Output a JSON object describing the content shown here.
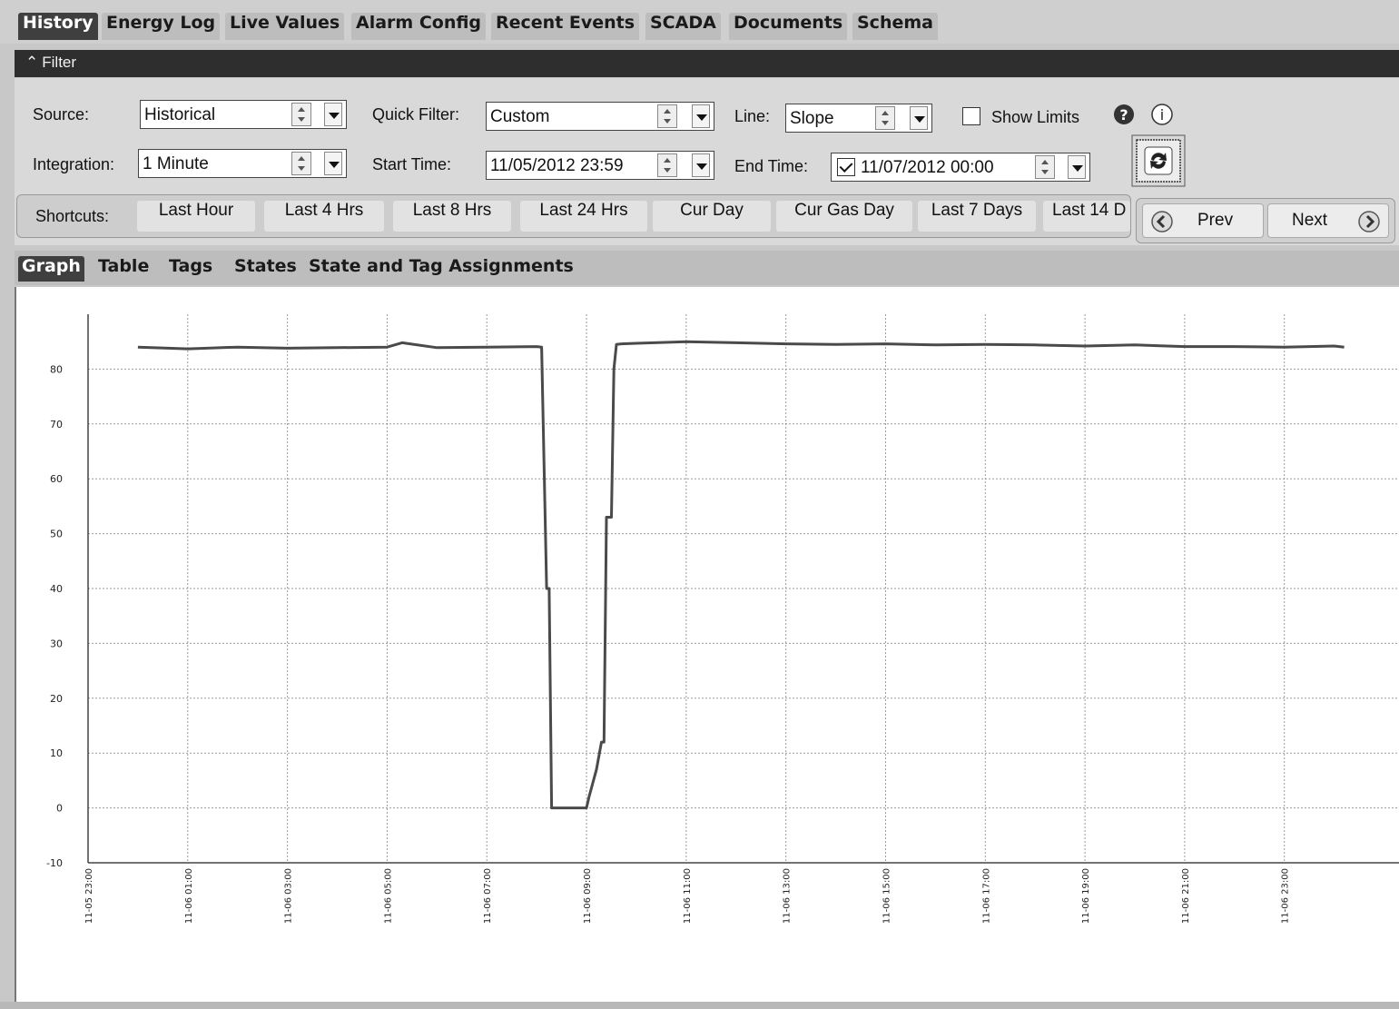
{
  "main_tabs": [
    {
      "label": "History",
      "active": true
    },
    {
      "label": "Energy Log"
    },
    {
      "label": "Live Values"
    },
    {
      "label": "Alarm Config"
    },
    {
      "label": "Recent Events"
    },
    {
      "label": "SCADA"
    },
    {
      "label": "Documents"
    },
    {
      "label": "Schema"
    }
  ],
  "filter": {
    "title": "Filter",
    "source_label": "Source:",
    "source_value": "Historical",
    "quick_filter_label": "Quick Filter:",
    "quick_filter_value": "Custom",
    "line_label": "Line:",
    "line_value": "Slope",
    "show_limits_label": "Show Limits",
    "show_limits_checked": false,
    "integration_label": "Integration:",
    "integration_value": "1 Minute",
    "start_time_label": "Start Time:",
    "start_time_value": "11/05/2012 23:59",
    "end_time_label": "End Time:",
    "end_time_checked": true,
    "end_time_value": "11/07/2012 00:00"
  },
  "shortcuts": {
    "label": "Shortcuts:",
    "items": [
      "Last Hour",
      "Last 4 Hrs",
      "Last 8 Hrs",
      "Last 24 Hrs",
      "Cur Day",
      "Cur Gas Day",
      "Last 7 Days",
      "Last 14 D"
    ]
  },
  "nav": {
    "prev_label": "Prev",
    "next_label": "Next"
  },
  "sub_tabs": [
    {
      "label": "Graph",
      "active": true
    },
    {
      "label": "Table"
    },
    {
      "label": "Tags"
    },
    {
      "label": "States"
    },
    {
      "label": "State and Tag Assignments"
    }
  ],
  "chart_data": {
    "type": "line",
    "title": "",
    "xlabel": "",
    "ylabel": "",
    "grid": true,
    "x_unit": "hours since 11-05 23:00",
    "xlim": [
      0,
      26.3
    ],
    "ylim": [
      -10,
      90
    ],
    "yticks": [
      -10,
      0,
      10,
      20,
      30,
      40,
      50,
      60,
      70,
      80
    ],
    "xticks": [
      {
        "value": 0,
        "label": "11-05 23:00"
      },
      {
        "value": 2,
        "label": "11-06 01:00"
      },
      {
        "value": 4,
        "label": "11-06 03:00"
      },
      {
        "value": 6,
        "label": "11-06 05:00"
      },
      {
        "value": 8,
        "label": "11-06 07:00"
      },
      {
        "value": 10,
        "label": "11-06 09:00"
      },
      {
        "value": 12,
        "label": "11-06 11:00"
      },
      {
        "value": 14,
        "label": "11-06 13:00"
      },
      {
        "value": 16,
        "label": "11-06 15:00"
      },
      {
        "value": 18,
        "label": "11-06 17:00"
      },
      {
        "value": 20,
        "label": "11-06 19:00"
      },
      {
        "value": 22,
        "label": "11-06 21:00"
      },
      {
        "value": 24,
        "label": "11-06 23:00"
      }
    ],
    "series": [
      {
        "name": "",
        "color": "#4a4a4a",
        "x": [
          1.0,
          2.0,
          3.0,
          4.0,
          5.0,
          6.0,
          6.3,
          7.0,
          8.0,
          9.0,
          9.1,
          9.2,
          9.25,
          9.3,
          9.9,
          10.0,
          10.05,
          10.2,
          10.3,
          10.35,
          10.4,
          10.5,
          10.55,
          10.6,
          10.7,
          11.0,
          12.0,
          13.0,
          14.0,
          15.0,
          16.0,
          17.0,
          18.0,
          19.0,
          20.0,
          21.0,
          22.0,
          23.0,
          24.0,
          25.0,
          25.2
        ],
        "y": [
          84,
          83.7,
          84,
          83.8,
          83.9,
          84.0,
          84.8,
          83.9,
          84.0,
          84.1,
          84.0,
          40,
          40,
          0,
          0,
          0,
          2,
          7,
          12,
          12,
          53,
          53,
          80,
          84.5,
          84.6,
          84.7,
          85,
          84.8,
          84.6,
          84.5,
          84.6,
          84.4,
          84.5,
          84.4,
          84.2,
          84.4,
          84.1,
          84.1,
          84.0,
          84.2,
          84.0
        ]
      }
    ]
  },
  "colors": {
    "active_tab": "#3f3f3f",
    "filter_bar": "#2e2e2e",
    "line": "#4a4a4a"
  }
}
